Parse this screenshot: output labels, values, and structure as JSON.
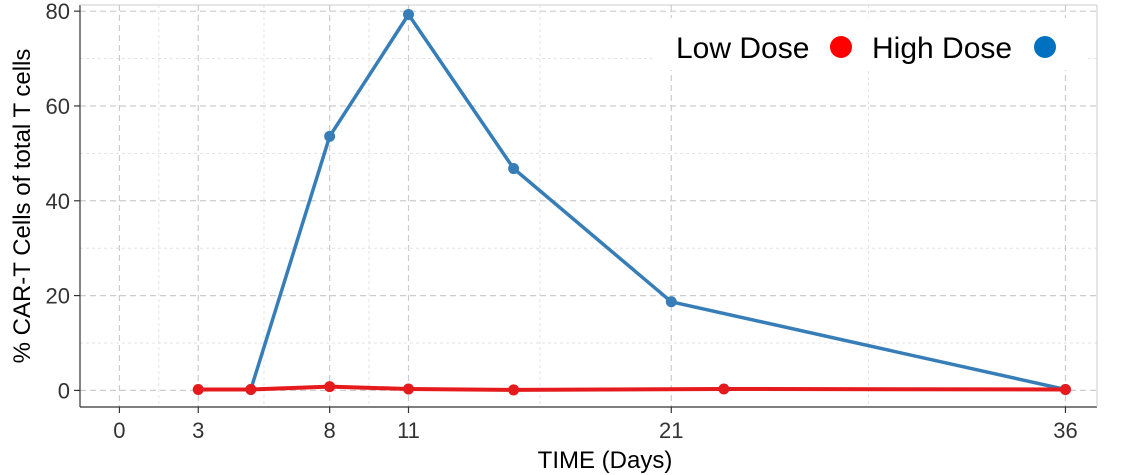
{
  "chart_data": {
    "type": "line",
    "xlabel": "TIME (Days)",
    "ylabel": "% CAR-T Cells of total T cells",
    "xlim": [
      -1.5,
      37.2
    ],
    "ylim": [
      -3.5,
      81.3
    ],
    "x_ticks": [
      0,
      3,
      8,
      11,
      21,
      36
    ],
    "y_ticks": [
      0,
      20,
      40,
      60,
      80
    ],
    "x_minor_gridlines": [
      1.5,
      5.5,
      9.5,
      16,
      28.5
    ],
    "y_minor_gridlines": [
      10,
      30,
      50,
      70
    ],
    "grid": true,
    "legend_position": "top-right",
    "series": [
      {
        "name": "Low Dose",
        "color": "#e41a1c",
        "x": [
          3,
          5,
          8,
          11,
          15,
          23,
          36
        ],
        "values": [
          0.2,
          0.2,
          0.8,
          0.3,
          0.1,
          0.3,
          0.2
        ]
      },
      {
        "name": "High Dose",
        "color": "#377eb8",
        "x": [
          5,
          8,
          11,
          15,
          21,
          36
        ],
        "values": [
          0.2,
          53.6,
          79.3,
          46.8,
          18.7,
          0.2
        ]
      }
    ],
    "legend_marker_colors": {
      "Low Dose": "#ff0000",
      "High Dose": "#0070c0"
    }
  }
}
